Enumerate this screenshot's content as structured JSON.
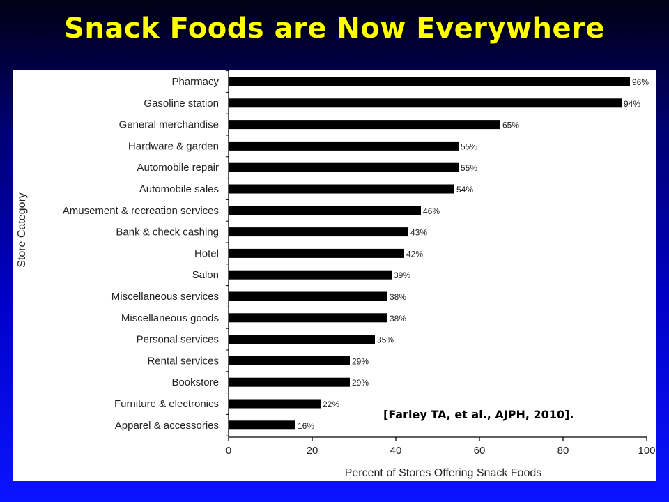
{
  "slide": {
    "title": "Snack Foods are Now Everywhere",
    "citation": "[Farley TA, et al., AJPH, 2010]."
  },
  "chart_data": {
    "type": "bar",
    "orientation": "horizontal",
    "categories": [
      "Pharmacy",
      "Gasoline station",
      "General merchandise",
      "Hardware & garden",
      "Automobile repair",
      "Automobile sales",
      "Amusement & recreation services",
      "Bank & check cashing",
      "Hotel",
      "Salon",
      "Miscellaneous services",
      "Miscellaneous goods",
      "Personal services",
      "Rental services",
      "Bookstore",
      "Furniture & electronics",
      "Apparel & accessories"
    ],
    "values": [
      96,
      94,
      65,
      55,
      55,
      54,
      46,
      43,
      42,
      39,
      38,
      38,
      35,
      29,
      29,
      22,
      16
    ],
    "value_labels": [
      "96%",
      "94%",
      "65%",
      "55%",
      "55%",
      "54%",
      "46%",
      "43%",
      "42%",
      "39%",
      "38%",
      "38%",
      "35%",
      "29%",
      "29%",
      "22%",
      "16%"
    ],
    "xlabel": "Percent of Stores Offering Snack Foods",
    "ylabel": "Store Category",
    "xlim": [
      0,
      100
    ],
    "xticks": [
      "0",
      "20",
      "40",
      "60",
      "80",
      "100"
    ],
    "grid": false,
    "bar_color": "#000000"
  }
}
